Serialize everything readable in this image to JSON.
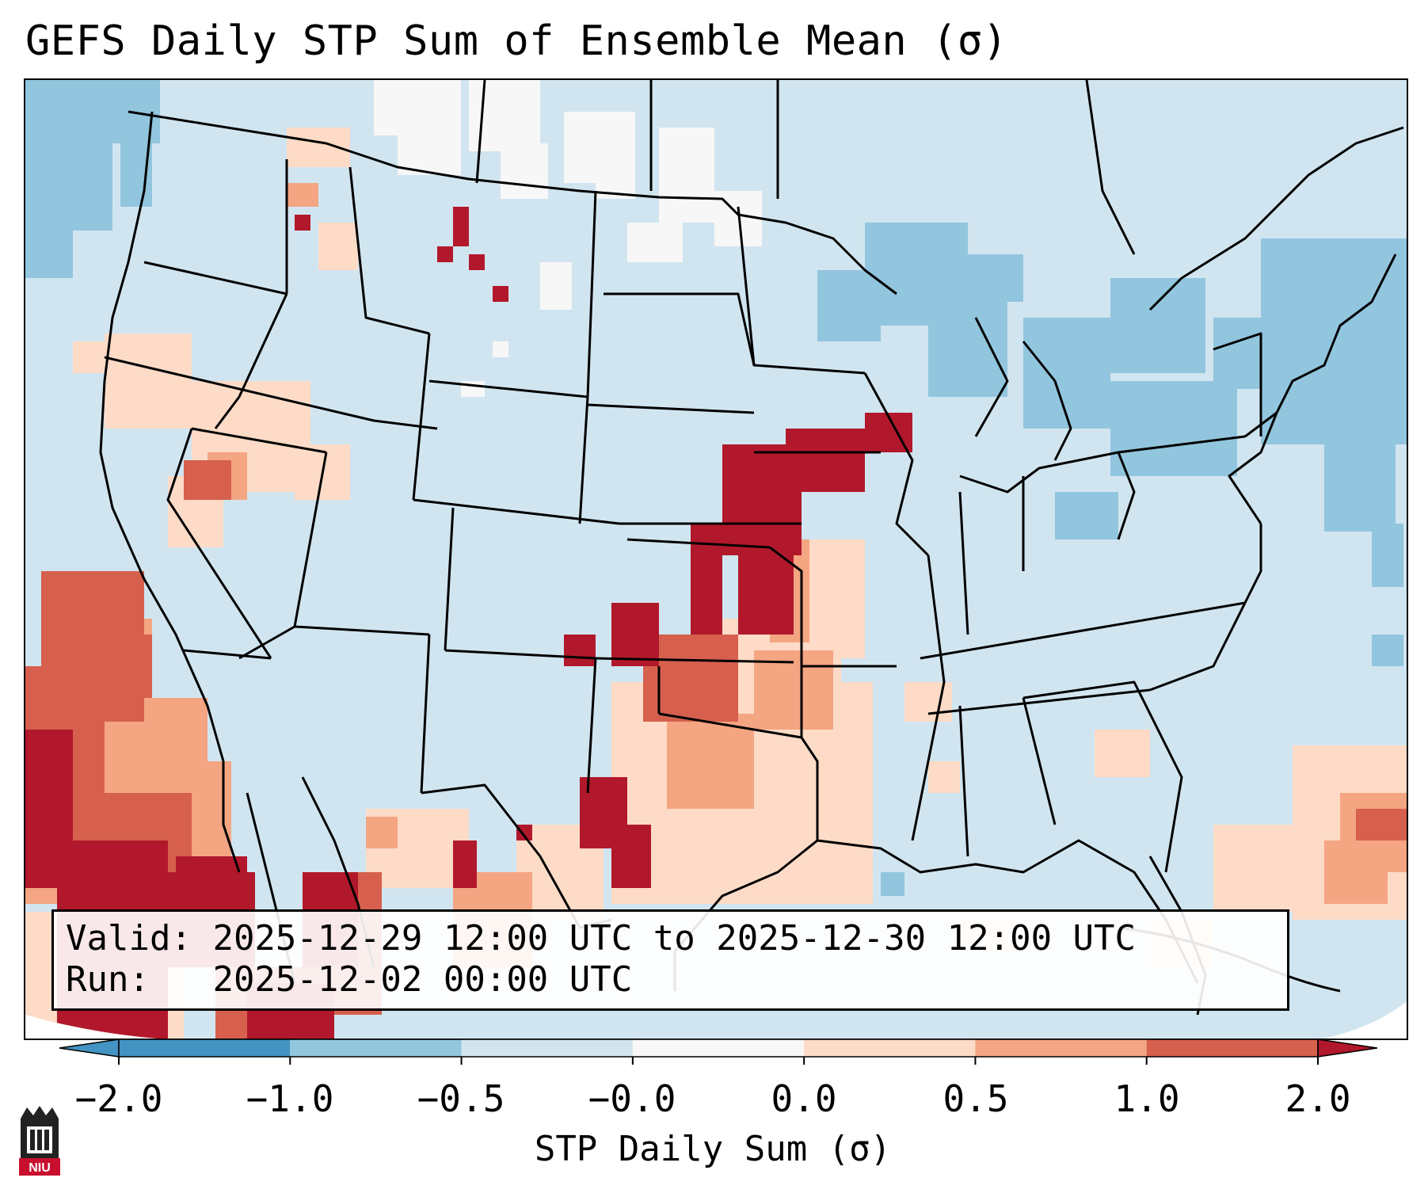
{
  "title": "GEFS Daily STP Sum of Ensemble Mean (σ)",
  "info": {
    "valid_label": "Valid:",
    "valid_value": "2025-12-29 12:00 UTC to 2025-12-30 12:00 UTC",
    "run_label": "Run:",
    "run_value": "2025-12-02 00:00 UTC"
  },
  "colorbar": {
    "label": "STP Daily Sum (σ)",
    "ticks": [
      "−2.0",
      "−1.0",
      "−0.5",
      "−0.0",
      "0.0",
      "0.5",
      "1.0",
      "2.0"
    ],
    "colors": [
      "#4393c3",
      "#92c5de",
      "#d1e5f0",
      "#f7f7f7",
      "#fddbc7",
      "#f4a582",
      "#d6604d",
      "#b2182b"
    ],
    "extend": "both"
  },
  "logo": {
    "text": "NIU"
  },
  "map": {
    "background": "#d1e5f0",
    "highlight": "Maximum STP anomaly corridor from eastern Kansas/Oklahoma to Iowa/Illinois; additional positive anomalies over Texas and the eastern Pacific; negative anomalies over the Great Lakes and New England"
  }
}
